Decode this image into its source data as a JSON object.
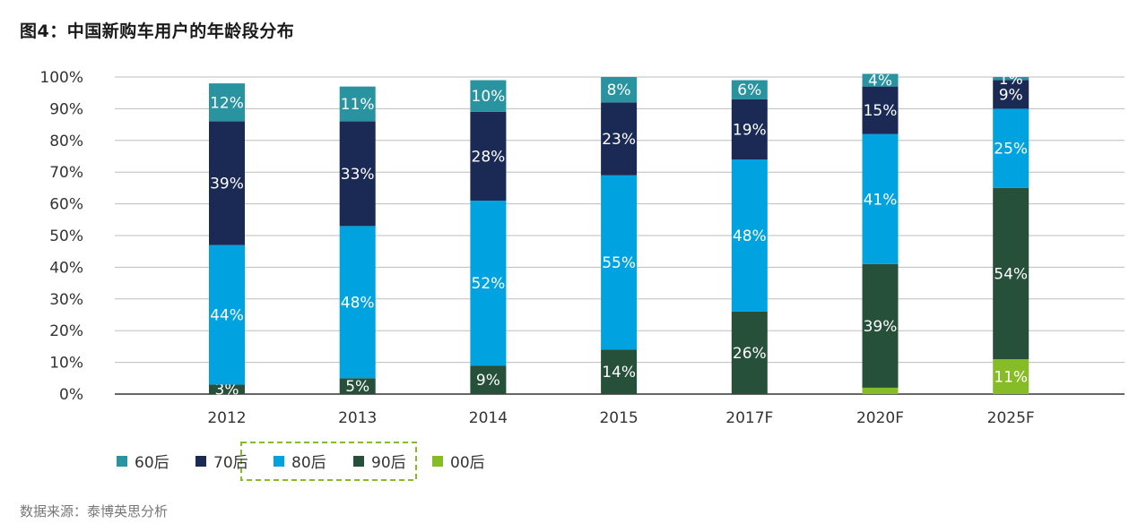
{
  "title": "图4：中国新购车用户的年龄段分布",
  "source": "数据来源：泰博英思分析",
  "chart_data": {
    "type": "bar",
    "stacked": true,
    "categories": [
      "2012",
      "2013",
      "2014",
      "2015",
      "2017F",
      "2020F",
      "2025F"
    ],
    "series": [
      {
        "name": "00后",
        "color": "#86bc25",
        "values": [
          0,
          0,
          0,
          0,
          0,
          2,
          11
        ],
        "labels": [
          "",
          "",
          "",
          "",
          "",
          "",
          "11%"
        ]
      },
      {
        "name": "90后",
        "color": "#26503a",
        "values": [
          3,
          5,
          9,
          14,
          26,
          39,
          54
        ],
        "labels": [
          "3%",
          "5%",
          "9%",
          "14%",
          "26%",
          "39%",
          "54%"
        ]
      },
      {
        "name": "80后",
        "color": "#00a3e0",
        "values": [
          44,
          48,
          52,
          55,
          48,
          41,
          25
        ],
        "labels": [
          "44%",
          "48%",
          "52%",
          "55%",
          "48%",
          "41%",
          "25%"
        ]
      },
      {
        "name": "70后",
        "color": "#1b2a55",
        "values": [
          39,
          33,
          28,
          23,
          19,
          15,
          9
        ],
        "labels": [
          "39%",
          "33%",
          "28%",
          "23%",
          "19%",
          "15%",
          "9%"
        ]
      },
      {
        "name": "60后",
        "color": "#2a93a0",
        "values": [
          12,
          11,
          10,
          8,
          6,
          4,
          1
        ],
        "labels": [
          "12%",
          "11%",
          "10%",
          "8%",
          "6%",
          "4%",
          "1%"
        ]
      }
    ],
    "legend_order": [
      "60后",
      "70后",
      "80后",
      "90后",
      "00后"
    ],
    "legend_highlight": [
      "80后",
      "90后"
    ],
    "highlight_color": "#86bc25",
    "yticks": [
      "0%",
      "10%",
      "20%",
      "30%",
      "40%",
      "50%",
      "60%",
      "70%",
      "80%",
      "90%",
      "100%"
    ],
    "ylim": [
      0,
      100
    ],
    "grid": true,
    "legend_position": "bottom-left"
  }
}
